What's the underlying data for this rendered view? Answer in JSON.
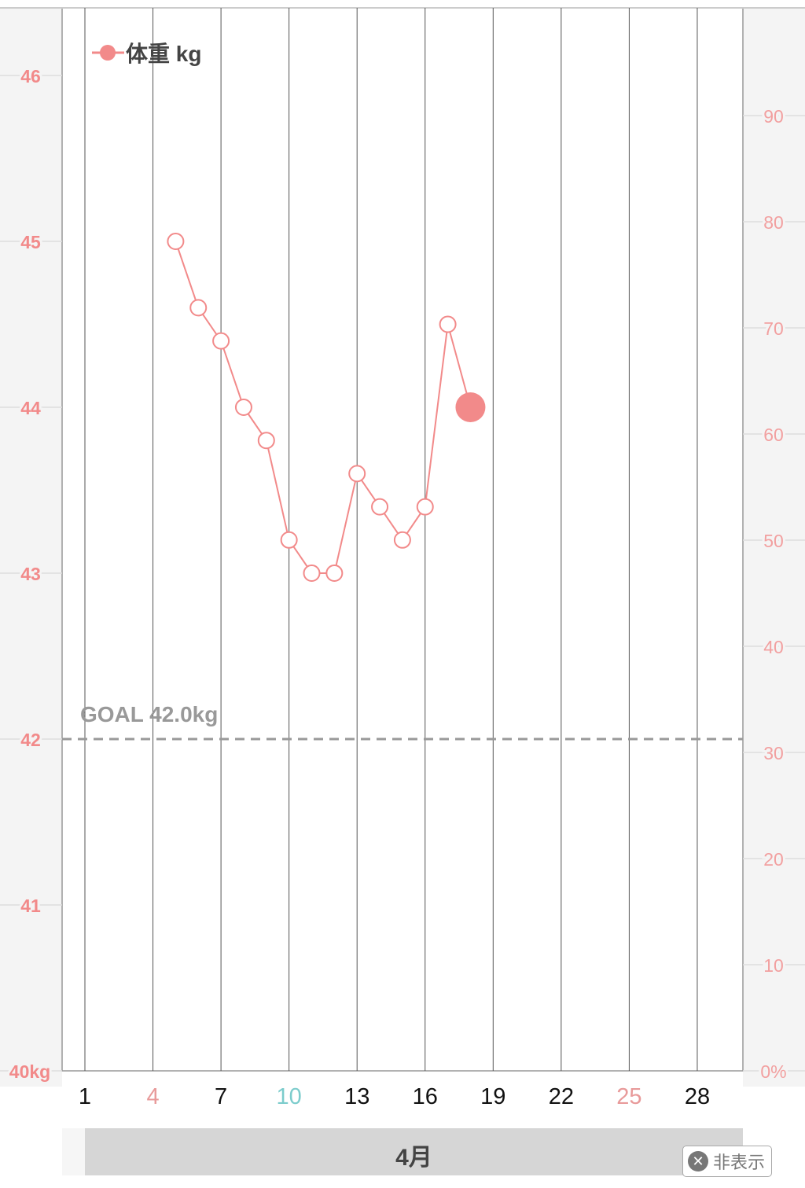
{
  "chart_data": {
    "type": "line",
    "legend": {
      "label": "体重 kg",
      "placement": "top-left"
    },
    "x": [
      5,
      6,
      7,
      8,
      9,
      10,
      11,
      12,
      13,
      14,
      15,
      16,
      17,
      18
    ],
    "series": [
      {
        "name": "体重 kg",
        "color": "#f28a8a",
        "values": [
          45.0,
          44.6,
          44.4,
          44.0,
          43.8,
          43.2,
          43.0,
          43.0,
          43.6,
          43.4,
          43.2,
          43.4,
          44.5,
          44.0
        ]
      }
    ],
    "highlight_x": 18,
    "xlim": [
      0,
      31
    ],
    "ylim": [
      40,
      46.4
    ],
    "y_ticks": [
      {
        "v": 46,
        "label": "46"
      },
      {
        "v": 45,
        "label": "45"
      },
      {
        "v": 44,
        "label": "44"
      },
      {
        "v": 43,
        "label": "43"
      },
      {
        "v": 42,
        "label": "42"
      },
      {
        "v": 41,
        "label": "41"
      },
      {
        "v": 40,
        "label": "40kg"
      }
    ],
    "y2_ticks": [
      {
        "v": 90,
        "label": "90"
      },
      {
        "v": 80,
        "label": "80"
      },
      {
        "v": 70,
        "label": "70"
      },
      {
        "v": 60,
        "label": "60"
      },
      {
        "v": 50,
        "label": "50"
      },
      {
        "v": 40,
        "label": "40"
      },
      {
        "v": 30,
        "label": "30"
      },
      {
        "v": 20,
        "label": "20"
      },
      {
        "v": 10,
        "label": "10"
      },
      {
        "v": 0,
        "label": "0%"
      }
    ],
    "x_ticks": [
      {
        "v": 1,
        "label": "1",
        "color": "#111"
      },
      {
        "v": 4,
        "label": "4",
        "color": "#e89a9a"
      },
      {
        "v": 7,
        "label": "7",
        "color": "#111"
      },
      {
        "v": 10,
        "label": "10",
        "color": "#7ccccc"
      },
      {
        "v": 13,
        "label": "13",
        "color": "#111"
      },
      {
        "v": 16,
        "label": "16",
        "color": "#111"
      },
      {
        "v": 19,
        "label": "19",
        "color": "#111"
      },
      {
        "v": 22,
        "label": "22",
        "color": "#111"
      },
      {
        "v": 25,
        "label": "25",
        "color": "#e89a9a"
      },
      {
        "v": 28,
        "label": "28",
        "color": "#111"
      }
    ],
    "goal": {
      "value": 42.0,
      "label": "GOAL 42.0kg"
    },
    "grid": true
  },
  "footer": {
    "month_label": "4月",
    "hide_label": "非表示",
    "hide_icon": "close-circle-icon"
  }
}
